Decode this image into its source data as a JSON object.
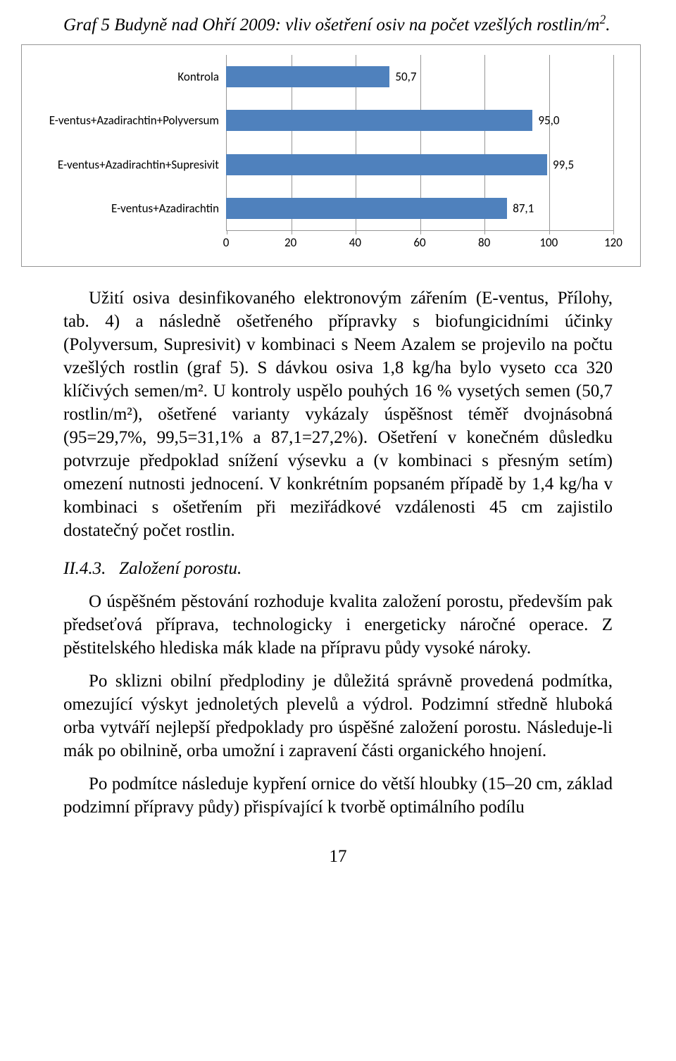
{
  "caption": {
    "label": "Graf 5",
    "text": "Budyně nad Ohří 2009: vliv ošetření osiv na počet vzešlých rostlin/m",
    "sup": "2",
    "tail": "."
  },
  "chart": {
    "type": "bar-horizontal",
    "bar_color": "#4f81bd",
    "grid_color": "#969696",
    "background_color": "#ffffff",
    "label_fontsize": 17,
    "xlim": [
      0,
      120
    ],
    "xtick_step": 20,
    "xticks": [
      0,
      20,
      40,
      60,
      80,
      100,
      120
    ],
    "categories": [
      "Kontrola",
      "E-ventus+Azadirachtin+Polyversum",
      "E-ventus+Azadirachtin+Supresivit",
      "E-ventus+Azadirachtin"
    ],
    "values": [
      50.7,
      95.0,
      99.5,
      87.1
    ],
    "value_labels": [
      "50,7",
      "95,0",
      "99,5",
      "87,1"
    ]
  },
  "para1": "Užití osiva desinfikovaného elektronovým zářením (E-ventus, Přílohy, tab. 4) a následně ošetřeného přípravky s biofungicidními účinky (Polyversum, Supresivit) v kombinaci s Neem Azalem se projevilo na počtu vzešlých rostlin (graf 5). S dávkou osiva 1,8 kg/ha bylo vyseto cca 320 klíčivých semen/m². U kontroly uspělo pouhých 16 % vysetých semen (50,7 rostlin/m²), ošetřené varianty vykázaly úspěšnost téměř dvojnásobná (95=29,7%, 99,5=31,1% a 87,1=27,2%). Ošetření v konečném důsledku potvrzuje předpoklad snížení výsevku a (v kombinaci s přesným setím) omezení nutnosti jednocení. V konkrétním popsaném případě by 1,4 kg/ha v kombinaci s ošetřením při meziřádkové vzdálenosti 45 cm zajistilo dostatečný počet rostlin.",
  "section": {
    "number": "II.4.3.",
    "title": "Založení porostu."
  },
  "para2": "O úspěšném pěstování rozhoduje kvalita založení porostu, především pak předseťová příprava, technologicky i energeticky náročné operace. Z pěstitelského hlediska mák klade na přípravu půdy vysoké nároky.",
  "para3": "Po sklizni obilní předplodiny je důležitá správně provedená podmítka, omezující výskyt jednoletých plevelů a výdrol. Podzimní středně hluboká orba vytváří nejlepší předpoklady pro úspěšné založení porostu. Následuje-li mák po obilnině, orba umožní i zapravení části organického hnojení.",
  "para4": "Po podmítce následuje kypření ornice do větší hloubky (15–20 cm, základ podzimní přípravy půdy) přispívající k tvorbě optimálního podílu",
  "page_number": "17"
}
